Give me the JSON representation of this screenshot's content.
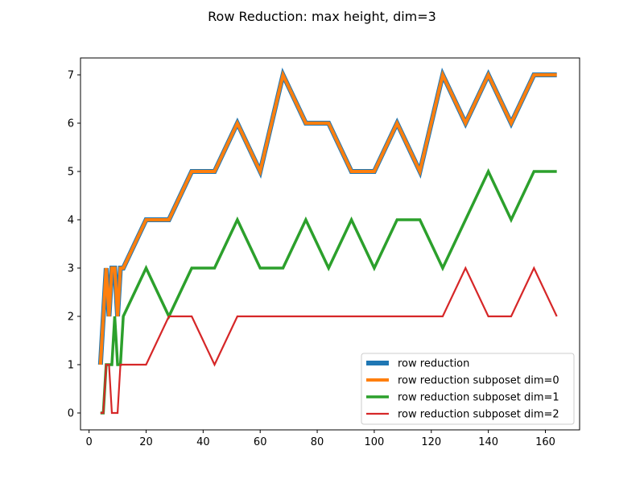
{
  "chart_data": {
    "type": "line",
    "title": "Row Reduction: max height, dim=3",
    "xlabel": "",
    "ylabel": "",
    "xlim": [
      -3.0,
      172.0
    ],
    "ylim": [
      -0.35,
      7.35
    ],
    "xticks": [
      0,
      20,
      40,
      60,
      80,
      100,
      120,
      140,
      160
    ],
    "yticks": [
      0,
      1,
      2,
      3,
      4,
      5,
      6,
      7
    ],
    "grid": false,
    "legend_position": "lower-right",
    "series": [
      {
        "name": "row reduction",
        "color": "#1f77b4",
        "width": 6,
        "x": [
          4,
          6,
          7,
          8,
          9,
          10,
          11,
          12,
          20,
          28,
          36,
          44,
          52,
          60,
          68,
          76,
          84,
          92,
          100,
          108,
          116,
          124,
          132,
          140,
          148,
          156,
          164
        ],
        "y": [
          1,
          3,
          2,
          3,
          3,
          2,
          3,
          3,
          4,
          4,
          5,
          5,
          6,
          5,
          7,
          6,
          6,
          5,
          5,
          6,
          5,
          7,
          6,
          7,
          6,
          7,
          7
        ]
      },
      {
        "name": "row reduction subposet dim=0",
        "color": "#ff7f0e",
        "width": 4,
        "x": [
          4,
          6,
          7,
          8,
          9,
          10,
          11,
          12,
          20,
          28,
          36,
          44,
          52,
          60,
          68,
          76,
          84,
          92,
          100,
          108,
          116,
          124,
          132,
          140,
          148,
          156,
          164
        ],
        "y": [
          1,
          3,
          2,
          3,
          3,
          2,
          3,
          3,
          4,
          4,
          5,
          5,
          6,
          5,
          7,
          6,
          6,
          5,
          5,
          6,
          5,
          7,
          6,
          7,
          6,
          7,
          7
        ]
      },
      {
        "name": "row reduction subposet dim=1",
        "color": "#2ca02c",
        "width": 3.5,
        "x": [
          4,
          5,
          6,
          7,
          8,
          9,
          10,
          11,
          12,
          20,
          28,
          36,
          44,
          52,
          60,
          68,
          76,
          84,
          92,
          100,
          108,
          116,
          124,
          132,
          140,
          148,
          156,
          164
        ],
        "y": [
          0,
          0,
          1,
          1,
          1,
          2,
          1,
          1,
          2,
          3,
          2,
          3,
          3,
          4,
          3,
          3,
          4,
          3,
          4,
          3,
          4,
          4,
          3,
          4,
          5,
          4,
          5,
          5
        ]
      },
      {
        "name": "row reduction subposet dim=2",
        "color": "#d62728",
        "width": 2.2,
        "x": [
          4,
          5,
          6,
          7,
          8,
          9,
          10,
          11,
          12,
          20,
          28,
          36,
          44,
          52,
          60,
          68,
          76,
          84,
          92,
          100,
          108,
          116,
          124,
          132,
          140,
          148,
          156,
          164
        ],
        "y": [
          0,
          0,
          1,
          1,
          0,
          0,
          0,
          1,
          1,
          1,
          2,
          2,
          1,
          2,
          2,
          2,
          2,
          2,
          2,
          2,
          2,
          2,
          2,
          3,
          2,
          2,
          3,
          2
        ]
      }
    ]
  }
}
